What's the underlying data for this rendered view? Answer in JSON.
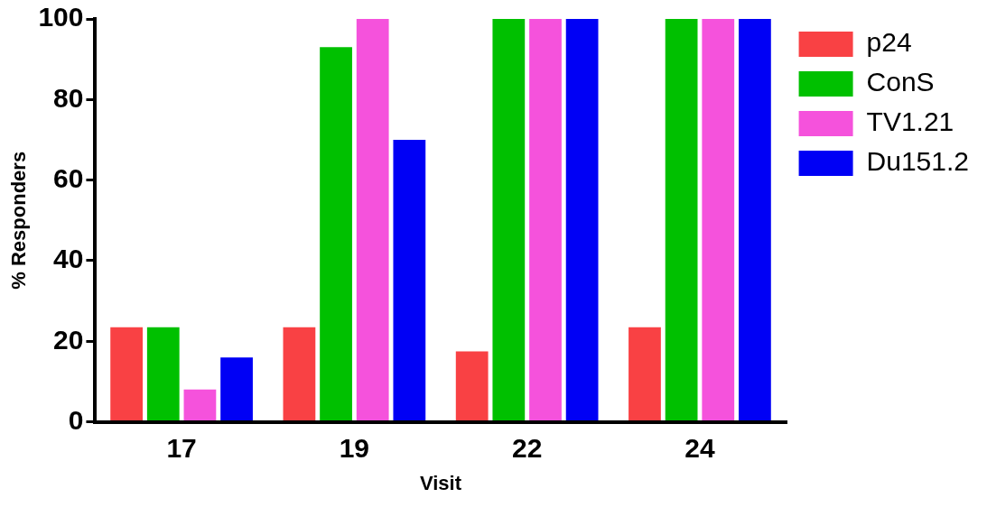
{
  "chart_data": {
    "type": "bar",
    "xlabel": "Visit",
    "ylabel": "% Responders",
    "categories": [
      "17",
      "19",
      "22",
      "24"
    ],
    "series": [
      {
        "name": "p24",
        "color": "#f94144",
        "values": [
          23.5,
          23.5,
          17.5,
          23.5
        ]
      },
      {
        "name": "ConS",
        "color": "#00c000",
        "values": [
          23.5,
          93,
          100,
          100
        ]
      },
      {
        "name": "TV1.21",
        "color": "#f552dc",
        "values": [
          8,
          100,
          100,
          100
        ]
      },
      {
        "name": "Du151.2",
        "color": "#0000f5",
        "values": [
          16,
          70,
          100,
          100
        ]
      }
    ],
    "ylim": [
      0,
      100
    ],
    "yticks": [
      0,
      20,
      40,
      60,
      80,
      100
    ],
    "grid": false,
    "legend": "right"
  }
}
